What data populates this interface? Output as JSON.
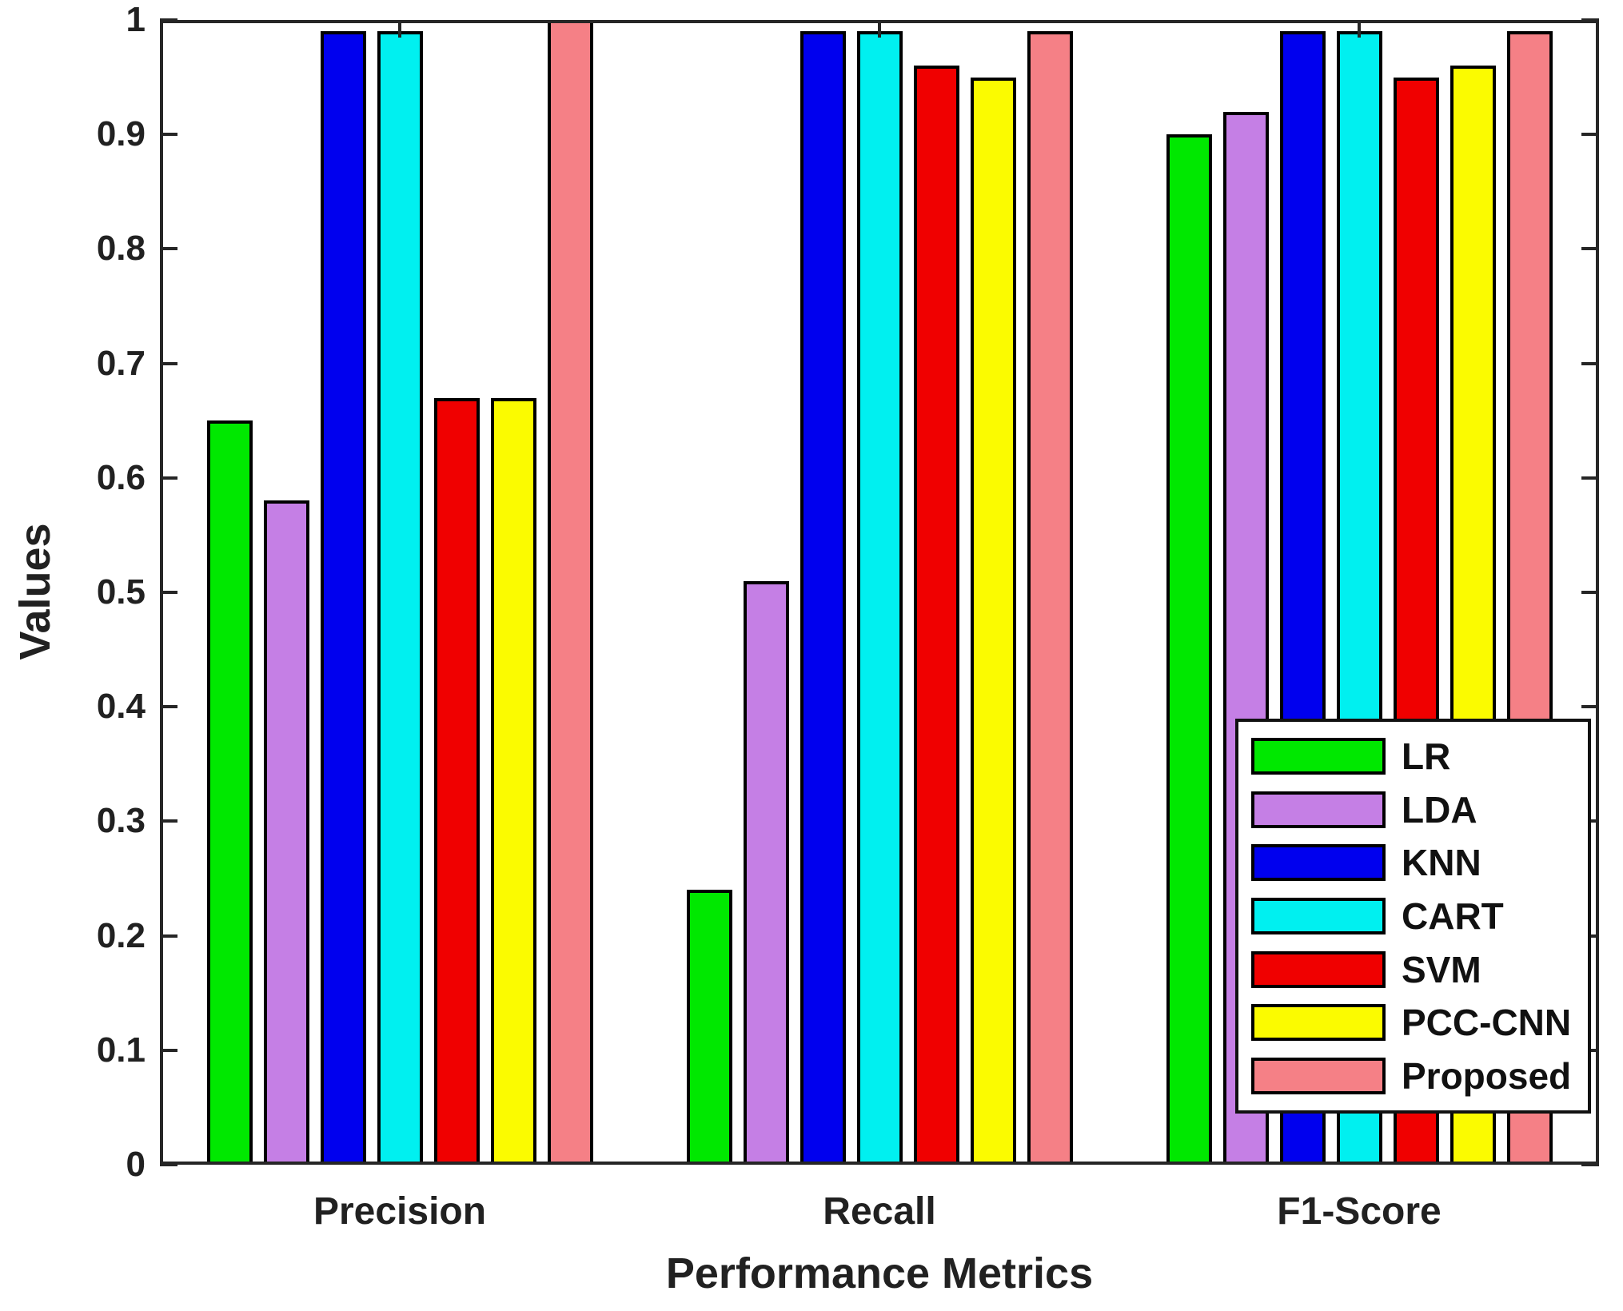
{
  "figure": {
    "background_color": "#ffffff",
    "axis_color": "#262626",
    "text_color": "#212121",
    "bar_edge_color": "#000000",
    "legend_border_color": "#111111"
  },
  "chart_data": {
    "type": "bar",
    "title": "",
    "xlabel": "Performance Metrics",
    "ylabel": "Values",
    "categories": [
      "Precision",
      "Recall",
      "F1-Score"
    ],
    "series": [
      {
        "name": "LR",
        "color": "#00E800",
        "values": [
          0.65,
          0.24,
          0.9
        ]
      },
      {
        "name": "LDA",
        "color": "#C57FE5",
        "values": [
          0.58,
          0.51,
          0.92
        ]
      },
      {
        "name": "KNN",
        "color": "#0000EE",
        "values": [
          0.99,
          0.99,
          0.99
        ]
      },
      {
        "name": "CART",
        "color": "#00F0F0",
        "values": [
          0.99,
          0.99,
          0.99
        ]
      },
      {
        "name": "SVM",
        "color": "#F00000",
        "values": [
          0.67,
          0.96,
          0.95
        ]
      },
      {
        "name": "PCC-CNN",
        "color": "#FBFB00",
        "values": [
          0.67,
          0.95,
          0.96
        ]
      },
      {
        "name": "Proposed",
        "color": "#F58086",
        "values": [
          1.0,
          0.99,
          0.99
        ]
      }
    ],
    "ylim": [
      0,
      1
    ],
    "ytick_values": [
      0,
      0.1,
      0.2,
      0.3,
      0.4,
      0.5,
      0.6,
      0.7,
      0.8,
      0.9,
      1
    ],
    "ytick_labels": [
      "0",
      "0.1",
      "0.2",
      "0.3",
      "0.4",
      "0.5",
      "0.6",
      "0.7",
      "0.8",
      "0.9",
      "1"
    ],
    "grid": false,
    "legend_position": "lower-right",
    "legend_entries": [
      "LR",
      "LDA",
      "KNN",
      "CART",
      "SVM",
      "PCC-CNN",
      "Proposed"
    ]
  }
}
